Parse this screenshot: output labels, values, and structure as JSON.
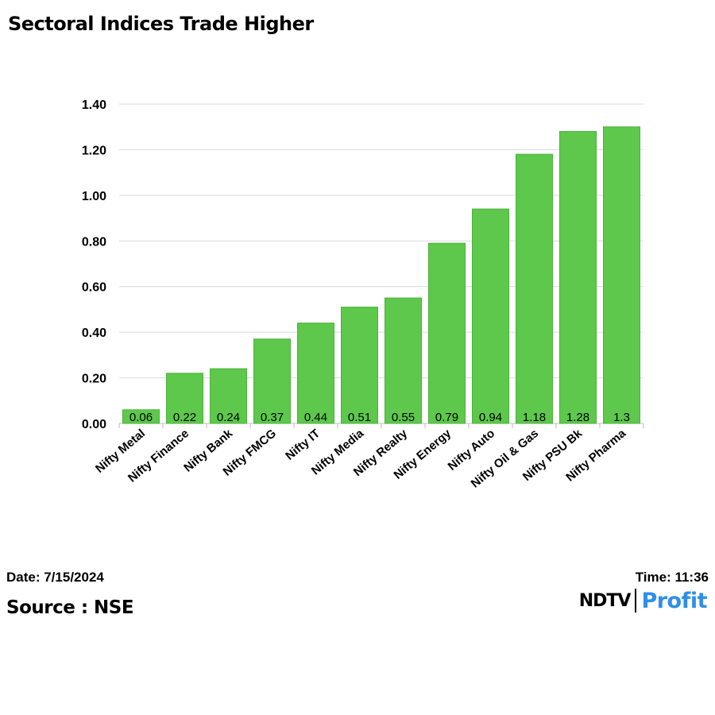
{
  "header": {
    "title": "Sectoral Indices Trade Higher"
  },
  "footer": {
    "date": "Date: 7/15/2024",
    "time": "Time: 11:36",
    "source": "Source : NSE",
    "logo_ndtv": "NDTV",
    "logo_profit": "Profit"
  },
  "colors": {
    "bar": "#5dc84b",
    "bar_stroke": "#4fb03e",
    "grid": "#d9d9d9",
    "profit": "#2f8fe8"
  },
  "chart_data": {
    "type": "bar",
    "title": "Sectoral Indices Trade Higher",
    "xlabel": "",
    "ylabel": "",
    "categories": [
      "Nifty Metal",
      "Nifty Finance",
      "Nifty Bank",
      "Nifty FMCG",
      "Nifty IT",
      "Nifty Media",
      "Nifty Realty",
      "Nifty Energy",
      "Nifty Auto",
      "Nifty Oil & Gas",
      "Nifty PSU Bk",
      "Nifty Pharma"
    ],
    "values": [
      0.06,
      0.22,
      0.24,
      0.37,
      0.44,
      0.51,
      0.55,
      0.79,
      0.94,
      1.18,
      1.28,
      1.3
    ],
    "data_labels": [
      "0.06",
      "0.22",
      "0.24",
      "0.37",
      "0.44",
      "0.51",
      "0.55",
      "0.79",
      "0.94",
      "1.18",
      "1.28",
      "1.3"
    ],
    "ylim": [
      0,
      1.4
    ],
    "yticks": [
      "0.00",
      "0.20",
      "0.40",
      "0.60",
      "0.80",
      "1.00",
      "1.20",
      "1.40"
    ],
    "grid": true,
    "legend": "none"
  }
}
